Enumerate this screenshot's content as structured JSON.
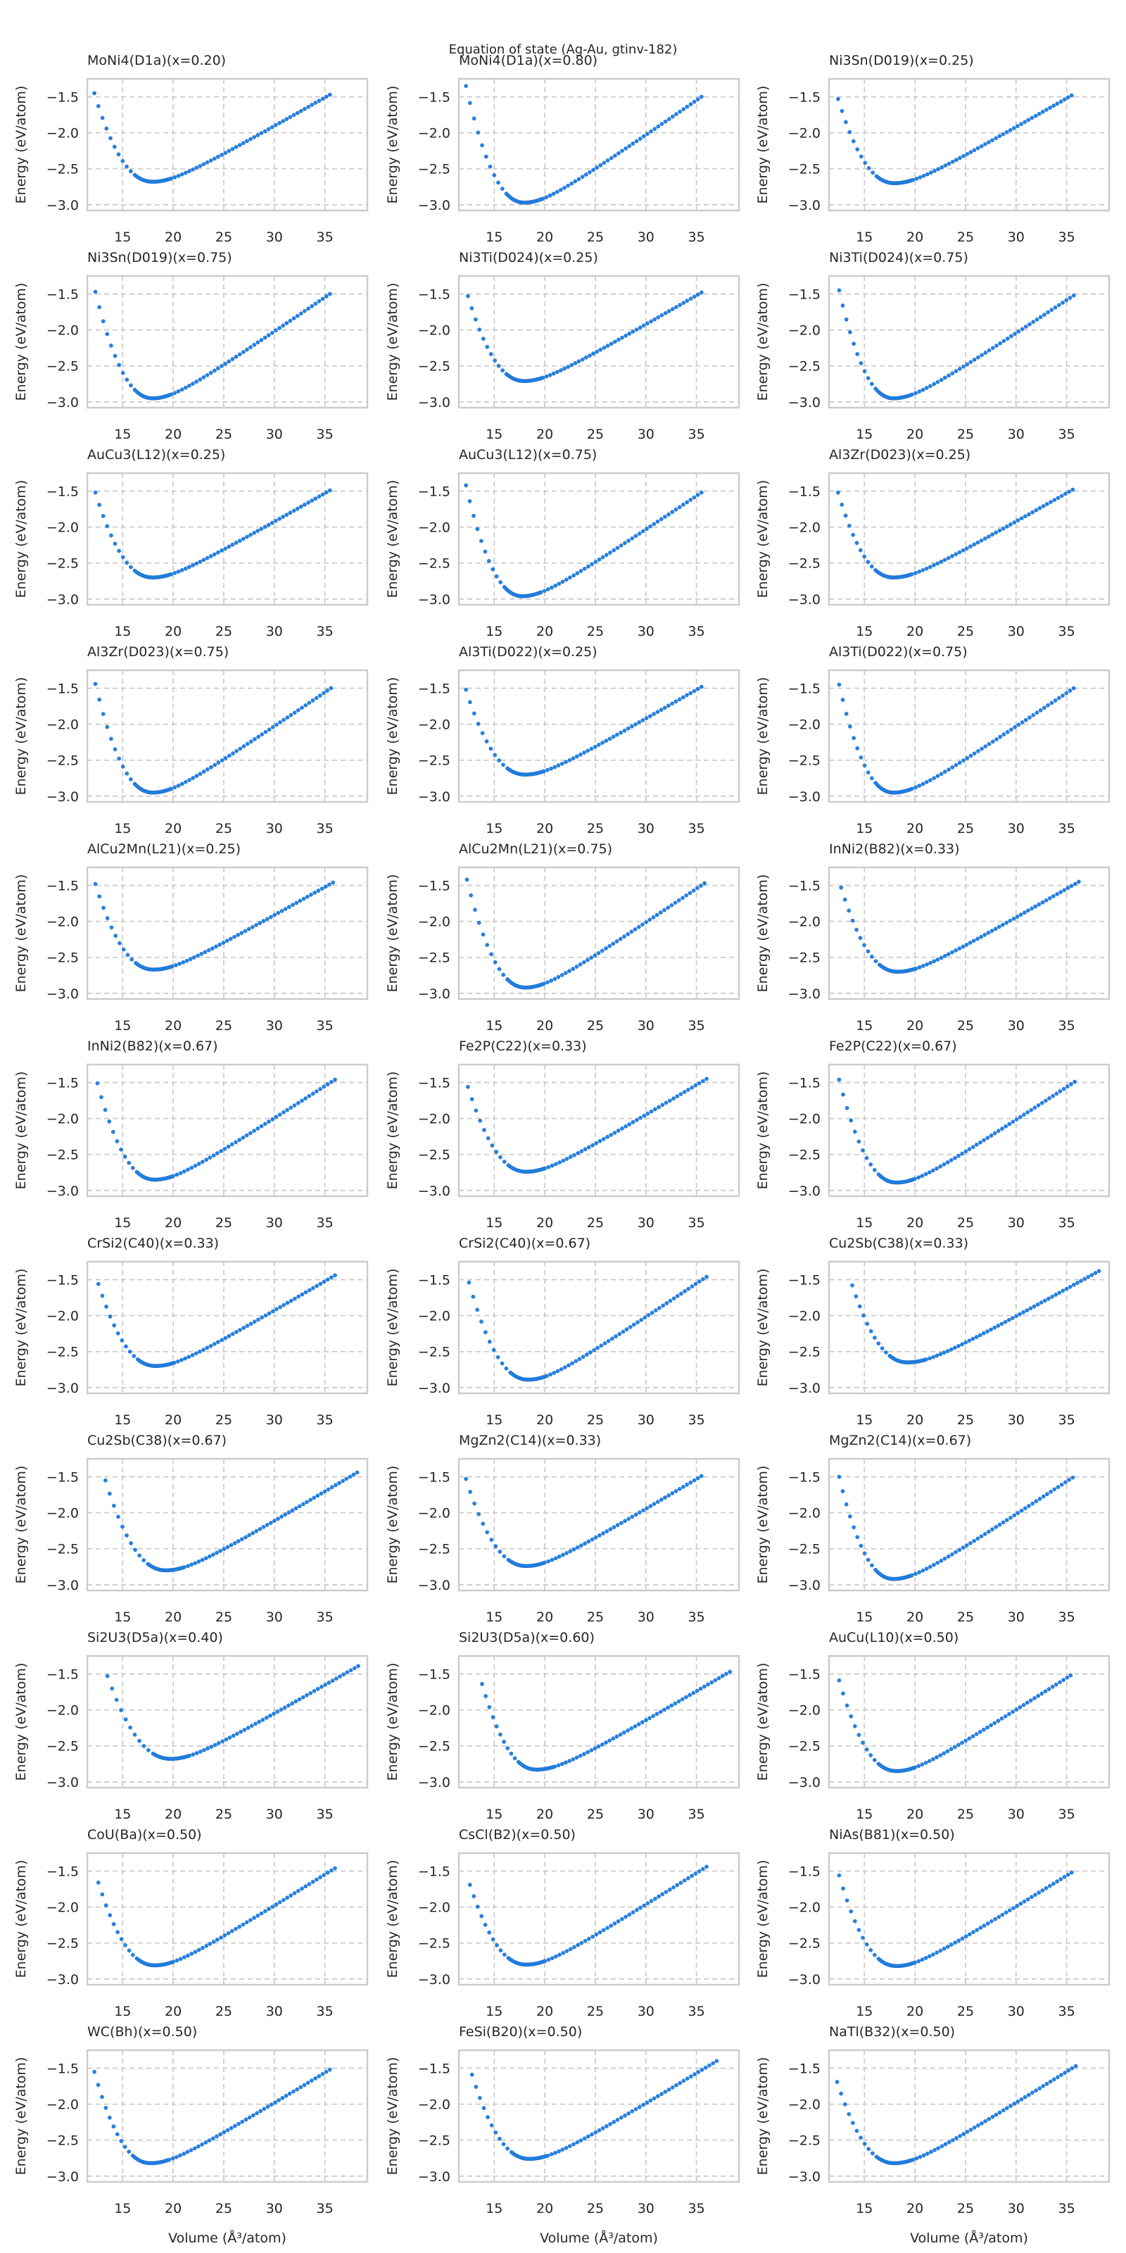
{
  "chart_data": {
    "type": "scatter",
    "title": "Equation of state (Ag-Au, gtinv-182)",
    "xlabel": "Volume (Å³/atom)",
    "ylabel": "Energy (eV/atom)",
    "xlim": [
      11.5,
      39.2
    ],
    "ylim": [
      -3.08,
      -1.25
    ],
    "xticks": [
      15,
      20,
      25,
      30,
      35
    ],
    "xtick_labels": [
      "15",
      "20",
      "25",
      "30",
      "35"
    ],
    "yticks": [
      -1.5,
      -2.0,
      -2.5,
      -3.0
    ],
    "ytick_labels": [
      "−1.5",
      "−2.0",
      "−2.5",
      "−3.0"
    ],
    "grid": true,
    "marker_color": "#2383e6",
    "layout": "11 rows x 3 columns",
    "panels": [
      {
        "title": "MoNi4(D1a)(x=0.20)",
        "v_start": 12.2,
        "e_start": -1.45,
        "v_min": 18.0,
        "e_min": -2.68,
        "v_end": 35.5,
        "e_end": -1.47
      },
      {
        "title": "MoNi4(D1a)(x=0.80)",
        "v_start": 12.2,
        "e_start": -1.35,
        "v_min": 18.0,
        "e_min": -2.97,
        "v_end": 35.5,
        "e_end": -1.5
      },
      {
        "title": "Ni3Sn(D019)(x=0.25)",
        "v_start": 12.4,
        "e_start": -1.53,
        "v_min": 18.0,
        "e_min": -2.7,
        "v_end": 35.5,
        "e_end": -1.48
      },
      {
        "title": "Ni3Sn(D019)(x=0.75)",
        "v_start": 12.3,
        "e_start": -1.47,
        "v_min": 18.0,
        "e_min": -2.95,
        "v_end": 35.5,
        "e_end": -1.5
      },
      {
        "title": "Ni3Ti(D024)(x=0.25)",
        "v_start": 12.4,
        "e_start": -1.53,
        "v_min": 18.0,
        "e_min": -2.71,
        "v_end": 35.5,
        "e_end": -1.48
      },
      {
        "title": "Ni3Ti(D024)(x=0.75)",
        "v_start": 12.5,
        "e_start": -1.45,
        "v_min": 17.9,
        "e_min": -2.95,
        "v_end": 35.7,
        "e_end": -1.52
      },
      {
        "title": "AuCu3(L12)(x=0.25)",
        "v_start": 12.3,
        "e_start": -1.52,
        "v_min": 18.0,
        "e_min": -2.7,
        "v_end": 35.5,
        "e_end": -1.49
      },
      {
        "title": "AuCu3(L12)(x=0.75)",
        "v_start": 12.2,
        "e_start": -1.42,
        "v_min": 17.8,
        "e_min": -2.96,
        "v_end": 35.5,
        "e_end": -1.52
      },
      {
        "title": "Al3Zr(D023)(x=0.25)",
        "v_start": 12.4,
        "e_start": -1.52,
        "v_min": 17.9,
        "e_min": -2.7,
        "v_end": 35.6,
        "e_end": -1.48
      },
      {
        "title": "Al3Zr(D023)(x=0.75)",
        "v_start": 12.3,
        "e_start": -1.44,
        "v_min": 18.0,
        "e_min": -2.95,
        "v_end": 35.6,
        "e_end": -1.5
      },
      {
        "title": "Al3Ti(D022)(x=0.25)",
        "v_start": 12.2,
        "e_start": -1.52,
        "v_min": 18.1,
        "e_min": -2.7,
        "v_end": 35.5,
        "e_end": -1.48
      },
      {
        "title": "Al3Ti(D022)(x=0.75)",
        "v_start": 12.5,
        "e_start": -1.45,
        "v_min": 17.9,
        "e_min": -2.95,
        "v_end": 35.7,
        "e_end": -1.5
      },
      {
        "title": "AlCu2Mn(L21)(x=0.25)",
        "v_start": 12.3,
        "e_start": -1.48,
        "v_min": 18.1,
        "e_min": -2.67,
        "v_end": 35.8,
        "e_end": -1.46
      },
      {
        "title": "AlCu2Mn(L21)(x=0.75)",
        "v_start": 12.3,
        "e_start": -1.42,
        "v_min": 18.1,
        "e_min": -2.92,
        "v_end": 35.8,
        "e_end": -1.47
      },
      {
        "title": "InNi2(B82)(x=0.33)",
        "v_start": 12.7,
        "e_start": -1.53,
        "v_min": 18.3,
        "e_min": -2.7,
        "v_end": 36.2,
        "e_end": -1.45
      },
      {
        "title": "InNi2(B82)(x=0.67)",
        "v_start": 12.5,
        "e_start": -1.51,
        "v_min": 18.2,
        "e_min": -2.85,
        "v_end": 36.0,
        "e_end": -1.46
      },
      {
        "title": "Fe2P(C22)(x=0.33)",
        "v_start": 12.4,
        "e_start": -1.56,
        "v_min": 18.2,
        "e_min": -2.74,
        "v_end": 36.0,
        "e_end": -1.45
      },
      {
        "title": "Fe2P(C22)(x=0.67)",
        "v_start": 12.5,
        "e_start": -1.46,
        "v_min": 18.2,
        "e_min": -2.89,
        "v_end": 35.8,
        "e_end": -1.49
      },
      {
        "title": "CrSi2(C40)(x=0.33)",
        "v_start": 12.6,
        "e_start": -1.56,
        "v_min": 18.3,
        "e_min": -2.7,
        "v_end": 36.0,
        "e_end": -1.44
      },
      {
        "title": "CrSi2(C40)(x=0.67)",
        "v_start": 12.5,
        "e_start": -1.54,
        "v_min": 18.4,
        "e_min": -2.89,
        "v_end": 36.0,
        "e_end": -1.46
      },
      {
        "title": "Cu2Sb(C38)(x=0.33)",
        "v_start": 13.8,
        "e_start": -1.58,
        "v_min": 19.3,
        "e_min": -2.65,
        "v_end": 38.2,
        "e_end": -1.38
      },
      {
        "title": "Cu2Sb(C38)(x=0.67)",
        "v_start": 13.3,
        "e_start": -1.55,
        "v_min": 19.3,
        "e_min": -2.8,
        "v_end": 38.2,
        "e_end": -1.44
      },
      {
        "title": "MgZn2(C14)(x=0.33)",
        "v_start": 12.2,
        "e_start": -1.53,
        "v_min": 18.2,
        "e_min": -2.74,
        "v_end": 35.5,
        "e_end": -1.49
      },
      {
        "title": "MgZn2(C14)(x=0.67)",
        "v_start": 12.5,
        "e_start": -1.5,
        "v_min": 17.9,
        "e_min": -2.92,
        "v_end": 35.6,
        "e_end": -1.51
      },
      {
        "title": "Si2U3(D5a)(x=0.40)",
        "v_start": 13.5,
        "e_start": -1.53,
        "v_min": 19.8,
        "e_min": -2.68,
        "v_end": 38.3,
        "e_end": -1.39
      },
      {
        "title": "Si2U3(D5a)(x=0.60)",
        "v_start": 13.8,
        "e_start": -1.64,
        "v_min": 19.2,
        "e_min": -2.83,
        "v_end": 38.3,
        "e_end": -1.47
      },
      {
        "title": "AuCu(L10)(x=0.50)",
        "v_start": 12.5,
        "e_start": -1.59,
        "v_min": 18.2,
        "e_min": -2.85,
        "v_end": 35.4,
        "e_end": -1.52
      },
      {
        "title": "CoU(Ba)(x=0.50)",
        "v_start": 12.6,
        "e_start": -1.66,
        "v_min": 18.2,
        "e_min": -2.81,
        "v_end": 36.0,
        "e_end": -1.46
      },
      {
        "title": "CsCl(B2)(x=0.50)",
        "v_start": 12.6,
        "e_start": -1.69,
        "v_min": 18.2,
        "e_min": -2.8,
        "v_end": 36.0,
        "e_end": -1.44
      },
      {
        "title": "NiAs(B81)(x=0.50)",
        "v_start": 12.5,
        "e_start": -1.56,
        "v_min": 18.2,
        "e_min": -2.82,
        "v_end": 35.5,
        "e_end": -1.52
      },
      {
        "title": "WC(Bh)(x=0.50)",
        "v_start": 12.2,
        "e_start": -1.55,
        "v_min": 17.8,
        "e_min": -2.82,
        "v_end": 35.5,
        "e_end": -1.52
      },
      {
        "title": "FeSi(B20)(x=0.50)",
        "v_start": 12.8,
        "e_start": -1.59,
        "v_min": 18.5,
        "e_min": -2.76,
        "v_end": 37.0,
        "e_end": -1.4
      },
      {
        "title": "NaTl(B32)(x=0.50)",
        "v_start": 12.3,
        "e_start": -1.69,
        "v_min": 18.0,
        "e_min": -2.82,
        "v_end": 35.9,
        "e_end": -1.47
      }
    ]
  }
}
